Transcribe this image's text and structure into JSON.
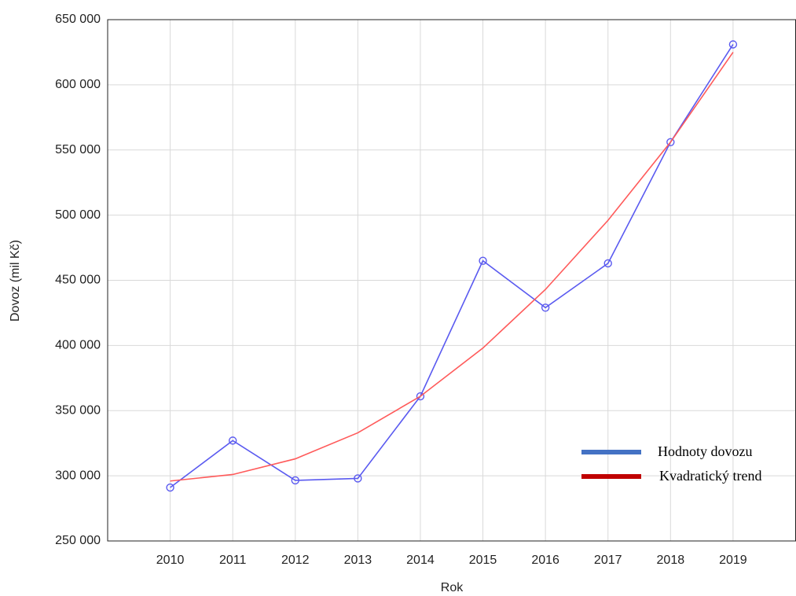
{
  "chart_data": {
    "type": "line",
    "x": [
      2010,
      2011,
      2012,
      2013,
      2014,
      2015,
      2016,
      2017,
      2018,
      2019
    ],
    "series": [
      {
        "name": "Hodnoty dovozu",
        "color": "#5a5af0",
        "legend_color": "#4472c4",
        "markers": true,
        "values": [
          291000,
          327000,
          296500,
          298000,
          361000,
          465000,
          429000,
          463000,
          556000,
          631000
        ]
      },
      {
        "name": "Kvadratický trend",
        "color": "#ff5a5a",
        "legend_color": "#c00000",
        "markers": false,
        "values": [
          296000,
          301000,
          313000,
          333000,
          361000,
          398000,
          443000,
          496000,
          556000,
          625000
        ]
      }
    ],
    "xlabel": "Rok",
    "ylabel": "Dovoz (mil Kč)",
    "xlim": [
      2009,
      2020
    ],
    "xticks": [
      2010,
      2011,
      2012,
      2013,
      2014,
      2015,
      2016,
      2017,
      2018,
      2019
    ],
    "ylim": [
      250000,
      650000
    ],
    "yticks": [
      {
        "value": 250000,
        "label": "250 000"
      },
      {
        "value": 300000,
        "label": "300 000"
      },
      {
        "value": 350000,
        "label": "350 000"
      },
      {
        "value": 400000,
        "label": "400 000"
      },
      {
        "value": 450000,
        "label": "450 000"
      },
      {
        "value": 500000,
        "label": "500 000"
      },
      {
        "value": 550000,
        "label": "550 000"
      },
      {
        "value": 600000,
        "label": "600 000"
      },
      {
        "value": 650000,
        "label": "650 000"
      }
    ],
    "grid": true,
    "legend": "lower right"
  }
}
